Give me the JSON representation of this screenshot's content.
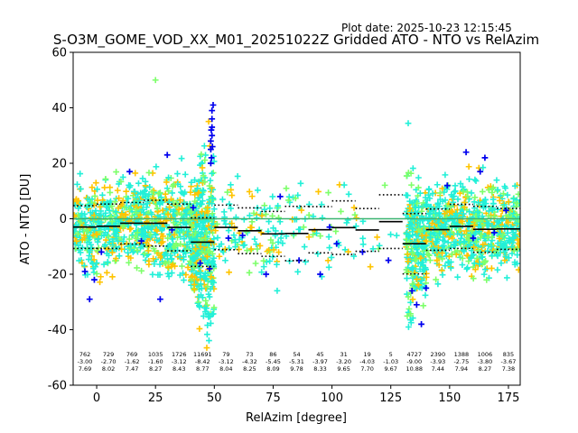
{
  "plot_date": "Plot date: 2025-10-23 12:15:45",
  "chart_data": {
    "type": "scatter",
    "title": "S-O3M_GOME_VOD_XX_M01_20251022Z Gridded ATO - NTO vs RelAzim",
    "xlabel": "RelAzim [degree]",
    "ylabel": "ATO - NTO [DU]",
    "xlim": [
      -10,
      180
    ],
    "ylim": [
      -60,
      60
    ],
    "xticks": [
      0,
      25,
      50,
      75,
      100,
      125,
      150,
      175
    ],
    "yticks": [
      -60,
      -40,
      -20,
      0,
      20,
      40,
      60
    ],
    "colors": {
      "cyan": "#22f0d8",
      "yellow": "#ffc400",
      "green": "#7dff6a",
      "blue": "#0000ee",
      "mean_line": "#000000",
      "zero_line": "#3cb371"
    },
    "bins": [
      {
        "center": -5,
        "count": "762",
        "mean": "-3.00",
        "std": "7.69"
      },
      {
        "center": 5,
        "count": "729",
        "mean": "-2.70",
        "std": "8.02"
      },
      {
        "center": 15,
        "count": "769",
        "mean": "-1.62",
        "std": "7.47"
      },
      {
        "center": 25,
        "count": "1035",
        "mean": "-1.60",
        "std": "8.27"
      },
      {
        "center": 35,
        "count": "1726",
        "mean": "-3.12",
        "std": "8.43"
      },
      {
        "center": 45,
        "count": "11691",
        "mean": "-8.42",
        "std": "8.77"
      },
      {
        "center": 55,
        "count": "79",
        "mean": "-3.12",
        "std": "8.04"
      },
      {
        "center": 65,
        "count": "73",
        "mean": "-4.32",
        "std": "8.25"
      },
      {
        "center": 75,
        "count": "86",
        "mean": "-5.45",
        "std": "8.09"
      },
      {
        "center": 85,
        "count": "54",
        "mean": "-5.31",
        "std": "9.78"
      },
      {
        "center": 95,
        "count": "45",
        "mean": "-3.97",
        "std": "8.33"
      },
      {
        "center": 105,
        "count": "31",
        "mean": "-3.20",
        "std": "9.65"
      },
      {
        "center": 115,
        "count": "19",
        "mean": "-4.03",
        "std": "7.70"
      },
      {
        "center": 125,
        "count": "5",
        "mean": "-1.03",
        "std": "9.67"
      },
      {
        "center": 135,
        "count": "4727",
        "mean": "-9.00",
        "std": "10.88"
      },
      {
        "center": 145,
        "count": "2390",
        "mean": "-3.93",
        "std": "7.44"
      },
      {
        "center": 155,
        "count": "1388",
        "mean": "-2.75",
        "std": "7.94"
      },
      {
        "center": 165,
        "count": "1006",
        "mean": "-3.80",
        "std": "8.27"
      },
      {
        "center": 175,
        "count": "835",
        "mean": "-3.67",
        "std": "7.38"
      }
    ]
  }
}
